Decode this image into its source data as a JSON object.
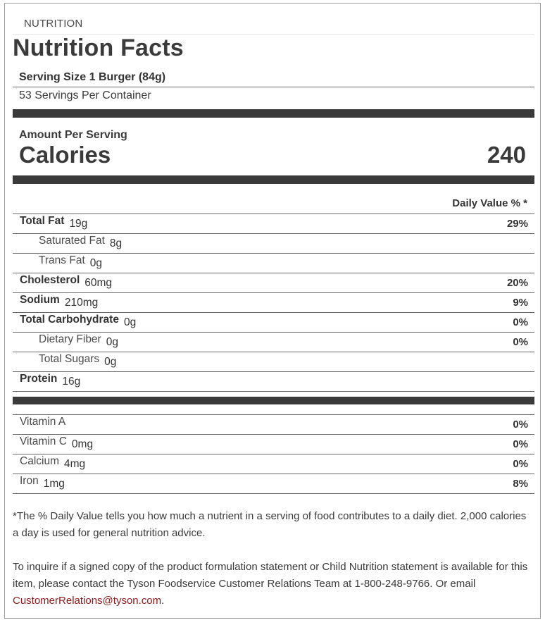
{
  "header": {
    "section_label": "NUTRITION",
    "title": "Nutrition Facts"
  },
  "serving": {
    "size": "Serving Size 1 Burger (84g)",
    "per_container": "53 Servings Per Container"
  },
  "calories": {
    "amount_label": "Amount Per Serving",
    "label": "Calories",
    "value": "240"
  },
  "daily_value_header": "Daily Value % *",
  "nutrients": [
    {
      "name": "Total Fat",
      "amount": "19g",
      "dv": "29%",
      "style": "bold"
    },
    {
      "name": "Saturated Fat",
      "amount": "8g",
      "dv": "",
      "style": "indent"
    },
    {
      "name": "Trans Fat",
      "amount": "0g",
      "dv": "",
      "style": "indent"
    },
    {
      "name": "Cholesterol",
      "amount": "60mg",
      "dv": "20%",
      "style": "bold"
    },
    {
      "name": "Sodium",
      "amount": "210mg",
      "dv": "9%",
      "style": "bold"
    },
    {
      "name": "Total Carbohydrate",
      "amount": "0g",
      "dv": "0%",
      "style": "bold"
    },
    {
      "name": "Dietary Fiber",
      "amount": "0g",
      "dv": "0%",
      "style": "indent"
    },
    {
      "name": "Total Sugars",
      "amount": "0g",
      "dv": "",
      "style": "indent"
    },
    {
      "name": "Protein",
      "amount": "16g",
      "dv": "",
      "style": "bold"
    }
  ],
  "vitamins": [
    {
      "name": "Vitamin A",
      "amount": "",
      "dv": "0%"
    },
    {
      "name": "Vitamin C",
      "amount": "0mg",
      "dv": "0%"
    },
    {
      "name": "Calcium",
      "amount": "4mg",
      "dv": "0%"
    },
    {
      "name": "Iron",
      "amount": "1mg",
      "dv": "8%"
    }
  ],
  "footnote": "*The % Daily Value tells you how much a nutrient in a serving of food contributes to a daily diet. 2,000 calories a day is used for general nutrition advice.",
  "inquiry": {
    "text": "To inquire if a signed copy of the product formulation statement or Child Nutrition statement is available for this item, please contact the Tyson Foodservice Customer Relations Team at 1-800-248-9766. Or email ",
    "email": "CustomerRelations@tyson.com",
    "suffix": "."
  },
  "colors": {
    "rule_dark": "#3a3a3a",
    "text": "#333333",
    "link": "#8b1a1a"
  }
}
